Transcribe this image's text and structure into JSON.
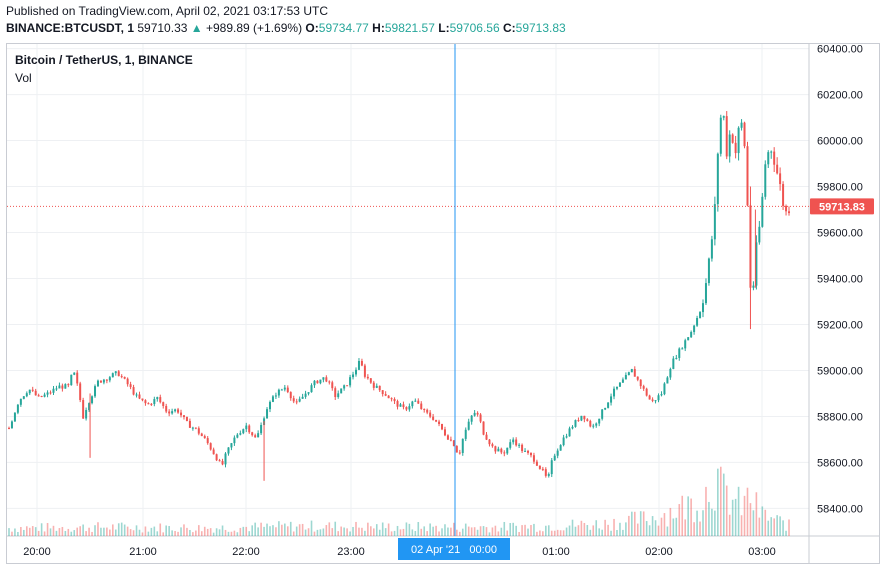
{
  "header": {
    "published": "Published on TradingView.com, April 02, 2021 03:17:53 UTC",
    "symbol": "BINANCE:BTCUSDT, 1",
    "last": "59710.33",
    "change_arrow": "▲",
    "change": "+989.89 (+1.69%)",
    "o_label": "O:",
    "o_value": "59734.77",
    "h_label": "H:",
    "h_value": "59821.57",
    "l_label": "L:",
    "l_value": "59706.56",
    "c_label": "C:",
    "c_value": "59713.83"
  },
  "legend": {
    "title": "Bitcoin / TetherUS, 1, BINANCE",
    "volume": "Vol"
  },
  "colors": {
    "up": "#26a69a",
    "down": "#ef5350",
    "price_line": "#ef5350",
    "crosshair": "#2196f3"
  },
  "chart_data": {
    "type": "candlestick",
    "interval": "1 minute",
    "y_axis_ticks": [
      "60400.00",
      "60200.00",
      "60000.00",
      "59800.00",
      "59600.00",
      "59400.00",
      "59200.00",
      "59000.00",
      "58800.00",
      "58600.00",
      "58400.00"
    ],
    "ylim": [
      58280,
      60420
    ],
    "x_axis_ticks": [
      "20:00",
      "21:00",
      "22:00",
      "23:00",
      "01:00",
      "02:00",
      "03:00"
    ],
    "crosshair_label": "02 Apr '21   00:00",
    "last_price_label": "59713.83",
    "close_path": [
      [
        0,
        58750
      ],
      [
        10,
        58870
      ],
      [
        20,
        58920
      ],
      [
        30,
        58880
      ],
      [
        40,
        58900
      ],
      [
        50,
        58930
      ],
      [
        60,
        58930
      ],
      [
        65,
        59000
      ],
      [
        70,
        58920
      ],
      [
        75,
        58800
      ],
      [
        80,
        58860
      ],
      [
        90,
        58950
      ],
      [
        100,
        58970
      ],
      [
        110,
        58990
      ],
      [
        120,
        58940
      ],
      [
        130,
        58880
      ],
      [
        140,
        58850
      ],
      [
        150,
        58880
      ],
      [
        160,
        58820
      ],
      [
        170,
        58830
      ],
      [
        180,
        58770
      ],
      [
        190,
        58740
      ],
      [
        200,
        58690
      ],
      [
        210,
        58620
      ],
      [
        215,
        58580
      ],
      [
        220,
        58640
      ],
      [
        230,
        58720
      ],
      [
        240,
        58760
      ],
      [
        250,
        58700
      ],
      [
        255,
        58760
      ],
      [
        260,
        58830
      ],
      [
        270,
        58900
      ],
      [
        280,
        58930
      ],
      [
        290,
        58850
      ],
      [
        300,
        58900
      ],
      [
        310,
        58950
      ],
      [
        320,
        58970
      ],
      [
        330,
        58890
      ],
      [
        340,
        58930
      ],
      [
        350,
        59000
      ],
      [
        355,
        59040
      ],
      [
        360,
        58980
      ],
      [
        370,
        58930
      ],
      [
        380,
        58900
      ],
      [
        390,
        58860
      ],
      [
        400,
        58830
      ],
      [
        410,
        58870
      ],
      [
        420,
        58820
      ],
      [
        430,
        58790
      ],
      [
        440,
        58730
      ],
      [
        450,
        58680
      ],
      [
        455,
        58630
      ],
      [
        460,
        58720
      ],
      [
        470,
        58820
      ],
      [
        475,
        58800
      ],
      [
        480,
        58730
      ],
      [
        490,
        58660
      ],
      [
        500,
        58640
      ],
      [
        510,
        58700
      ],
      [
        520,
        58650
      ],
      [
        530,
        58620
      ],
      [
        540,
        58560
      ],
      [
        545,
        58520
      ],
      [
        550,
        58620
      ],
      [
        560,
        58700
      ],
      [
        570,
        58760
      ],
      [
        580,
        58810
      ],
      [
        590,
        58750
      ],
      [
        600,
        58820
      ],
      [
        610,
        58900
      ],
      [
        620,
        58950
      ],
      [
        630,
        59000
      ],
      [
        640,
        58930
      ],
      [
        650,
        58860
      ],
      [
        660,
        58900
      ],
      [
        670,
        59030
      ],
      [
        680,
        59100
      ],
      [
        690,
        59170
      ],
      [
        700,
        59270
      ],
      [
        705,
        59380
      ],
      [
        710,
        59530
      ],
      [
        715,
        59750
      ],
      [
        718,
        60050
      ],
      [
        722,
        60150
      ],
      [
        726,
        59950
      ],
      [
        730,
        60050
      ],
      [
        735,
        59950
      ],
      [
        740,
        60100
      ],
      [
        745,
        59950
      ],
      [
        748,
        59600
      ],
      [
        751,
        59250
      ],
      [
        755,
        59500
      ],
      [
        760,
        59650
      ],
      [
        765,
        59900
      ],
      [
        770,
        59980
      ],
      [
        775,
        59900
      ],
      [
        780,
        59800
      ],
      [
        785,
        59680
      ],
      [
        790,
        59714
      ]
    ],
    "volume_profile": [
      [
        0,
        8
      ],
      [
        100,
        9
      ],
      [
        200,
        8
      ],
      [
        300,
        10
      ],
      [
        400,
        9
      ],
      [
        500,
        9
      ],
      [
        600,
        12
      ],
      [
        650,
        18
      ],
      [
        700,
        35
      ],
      [
        715,
        60
      ],
      [
        720,
        45
      ],
      [
        740,
        30
      ],
      [
        750,
        38
      ],
      [
        760,
        22
      ],
      [
        780,
        14
      ],
      [
        790,
        10
      ]
    ]
  }
}
